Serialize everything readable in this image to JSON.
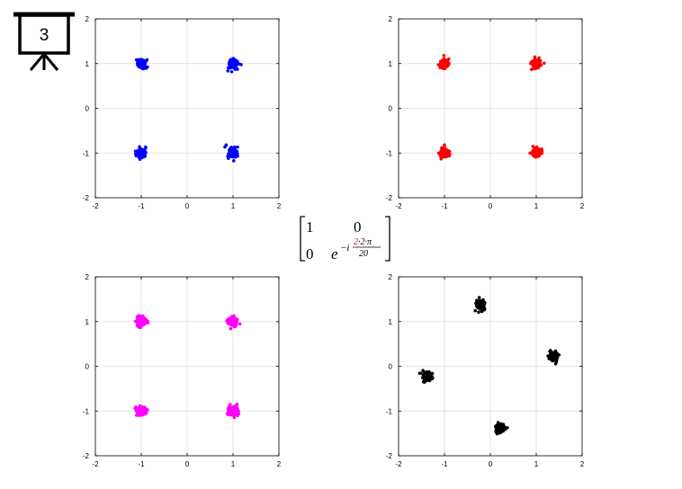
{
  "slide": {
    "number": "3",
    "icon": "presentation-board-icon"
  },
  "matrix": {
    "r1c1": "1",
    "r1c2": "0",
    "r2c1": "0",
    "base": "e",
    "exp_prefix": "−i",
    "num_highlight": "2",
    "num_rest": "·2·π",
    "den": "20",
    "highlight_color": "#cc0000"
  },
  "chart_data": [
    {
      "type": "scatter",
      "title": "",
      "xlabel": "",
      "ylabel": "",
      "xlim": [
        -2,
        2
      ],
      "ylim": [
        -2,
        2
      ],
      "xticks": [
        "-2",
        "-1",
        "0",
        "1",
        "2"
      ],
      "yticks": [
        "-2",
        "-1",
        "0",
        "1",
        "2"
      ],
      "grid": true,
      "color": "#0000ff",
      "points": [
        [
          1,
          1
        ],
        [
          -1,
          1
        ],
        [
          -1,
          -1
        ],
        [
          1,
          -1
        ]
      ]
    },
    {
      "type": "scatter",
      "title": "",
      "xlabel": "",
      "ylabel": "",
      "xlim": [
        -2,
        2
      ],
      "ylim": [
        -2,
        2
      ],
      "xticks": [
        "-2",
        "-1",
        "0",
        "1",
        "2"
      ],
      "yticks": [
        "-2",
        "-1",
        "0",
        "1",
        "2"
      ],
      "grid": true,
      "color": "#ff0000",
      "points": [
        [
          1,
          1
        ],
        [
          -1,
          1
        ],
        [
          -1,
          -1
        ],
        [
          1,
          -1
        ]
      ]
    },
    {
      "type": "scatter",
      "title": "",
      "xlabel": "",
      "ylabel": "",
      "xlim": [
        -2,
        2
      ],
      "ylim": [
        -2,
        2
      ],
      "xticks": [
        "-2",
        "-1",
        "0",
        "1",
        "2"
      ],
      "yticks": [
        "-2",
        "-1",
        "0",
        "1",
        "2"
      ],
      "grid": true,
      "color": "#ff00ff",
      "points": [
        [
          1,
          1
        ],
        [
          -1,
          1
        ],
        [
          -1,
          -1
        ],
        [
          1,
          -1
        ]
      ]
    },
    {
      "type": "scatter",
      "title": "",
      "xlabel": "",
      "ylabel": "",
      "xlim": [
        -2,
        2
      ],
      "ylim": [
        -2,
        2
      ],
      "xticks": [
        "-2",
        "-1",
        "0",
        "1",
        "2"
      ],
      "yticks": [
        "-2",
        "-1",
        "0",
        "1",
        "2"
      ],
      "grid": true,
      "color": "#000000",
      "points": [
        [
          1.38,
          0.22
        ],
        [
          -0.22,
          1.38
        ],
        [
          -1.38,
          -0.22
        ],
        [
          0.22,
          -1.38
        ]
      ]
    }
  ]
}
